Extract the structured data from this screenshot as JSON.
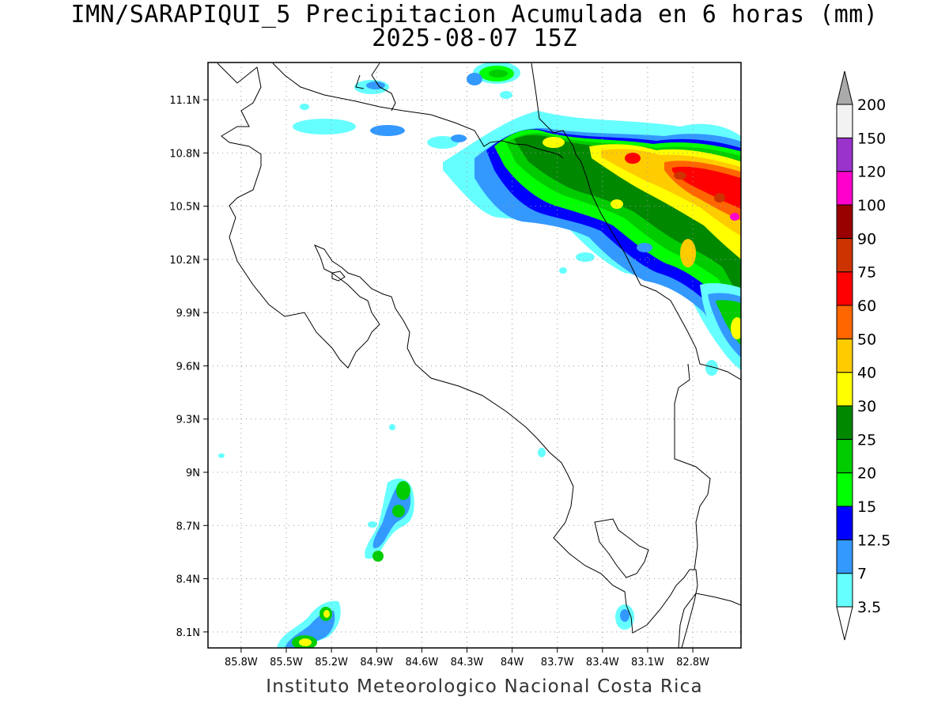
{
  "title": {
    "line1": "IMN/SARAPIQUI_5 Precipitacion Acumulada en 6 horas (mm)",
    "line2": "2025-08-07 15Z"
  },
  "footer": "Instituto Meteorologico Nacional Costa Rica",
  "map": {
    "lon_range": [
      -86.02,
      -82.48
    ],
    "lat_range": [
      8.01,
      11.31
    ],
    "lon_ticks": [
      {
        "value": -85.8,
        "label": "85.8W"
      },
      {
        "value": -85.5,
        "label": "85.5W"
      },
      {
        "value": -85.2,
        "label": "85.2W"
      },
      {
        "value": -84.9,
        "label": "84.9W"
      },
      {
        "value": -84.6,
        "label": "84.6W"
      },
      {
        "value": -84.3,
        "label": "84.3W"
      },
      {
        "value": -84.0,
        "label": "84W"
      },
      {
        "value": -83.7,
        "label": "83.7W"
      },
      {
        "value": -83.4,
        "label": "83.4W"
      },
      {
        "value": -83.1,
        "label": "83.1W"
      },
      {
        "value": -82.8,
        "label": "82.8W"
      }
    ],
    "lat_ticks": [
      {
        "value": 8.1,
        "label": "8.1N"
      },
      {
        "value": 8.4,
        "label": "8.4N"
      },
      {
        "value": 8.7,
        "label": "8.7N"
      },
      {
        "value": 9.0,
        "label": "9N"
      },
      {
        "value": 9.3,
        "label": "9.3N"
      },
      {
        "value": 9.6,
        "label": "9.6N"
      },
      {
        "value": 9.9,
        "label": "9.9N"
      },
      {
        "value": 10.2,
        "label": "10.2N"
      },
      {
        "value": 10.5,
        "label": "10.5N"
      },
      {
        "value": 10.8,
        "label": "10.8N"
      },
      {
        "value": 11.1,
        "label": "11.1N"
      }
    ],
    "grid": true
  },
  "colorbar": {
    "levels": [
      "3.5",
      "7",
      "12.5",
      "15",
      "20",
      "25",
      "30",
      "40",
      "50",
      "60",
      "75",
      "90",
      "100",
      "120",
      "150",
      "200"
    ],
    "colors": [
      "#ffffff",
      "#66ffff",
      "#3399ff",
      "#0000ff",
      "#00ff00",
      "#00cc00",
      "#008800",
      "#ffff00",
      "#ffcc00",
      "#ff6600",
      "#ff0000",
      "#cc3300",
      "#990000",
      "#ff00cc",
      "#9933cc",
      "#f2f2f2",
      "#aaaaaa"
    ]
  }
}
